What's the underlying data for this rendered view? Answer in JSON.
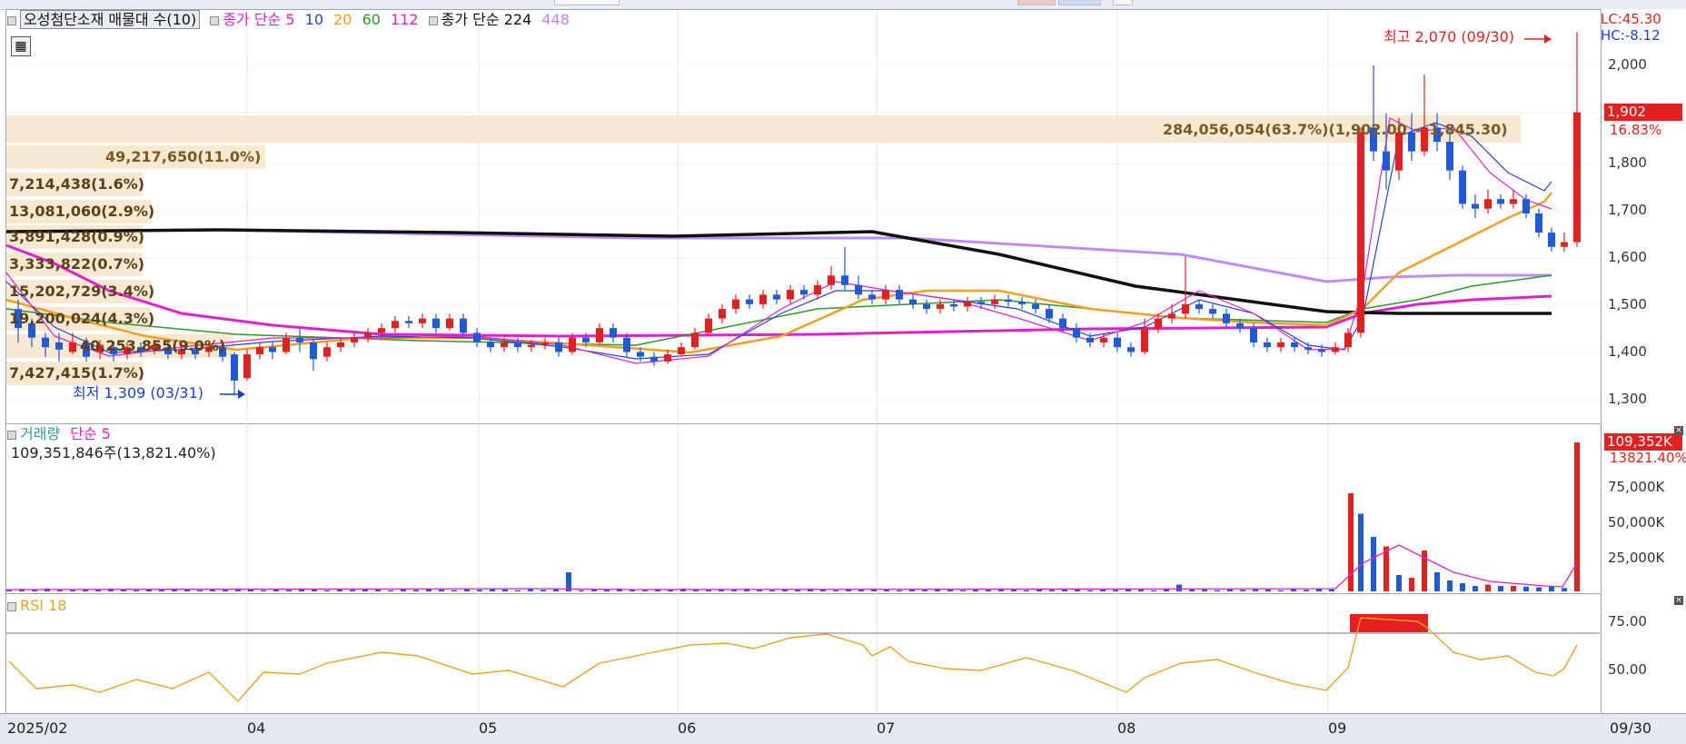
{
  "header": {
    "indicator_title": "오성첨단소재 매물대 수(10)",
    "ma_label": "종가 단순",
    "ma_periods": [
      "5",
      "10",
      "20",
      "60",
      "112"
    ],
    "ma_colors": [
      "#e020d0",
      "#2040e0",
      "#f0a020",
      "#2a9a2a",
      "#e020d0"
    ],
    "ma2_label": "종가 단순 224",
    "ma2_extra": "448"
  },
  "price_axis": {
    "ticks": [
      "2,000",
      "1,900",
      "1,800",
      "1,700",
      "1,600",
      "1,500",
      "1,400",
      "1,300"
    ],
    "lc": "LC:45.30",
    "hc": "HC:-8.12",
    "current": "1,902",
    "change_pct": "16.83%"
  },
  "annotations": {
    "high": "최고 2,070 (09/30)",
    "low": "최저 1,309 (03/31)"
  },
  "volume_profile": [
    "284,056,054(63.7%)(1,902.00 ~ 1,845.30)",
    "49,217,650(11.0%)",
    "7,214,438(1.6%)",
    "13,081,060(2.9%)",
    "3,891,428(0.9%)",
    "3,333,822(0.7%)",
    "15,202,729(3.4%)",
    "19,200,024(4.3%)",
    "40,253,855(9.0%)",
    "7,427,415(1.7%)"
  ],
  "volume_pane": {
    "title": "거래량",
    "ma_label": "단순 5",
    "value": "109,351,846주(13,821.40%)",
    "axis_ticks": [
      "75,000K",
      "50,000K",
      "25,000K"
    ],
    "current": "109,352K",
    "current_pct": "13821.40%"
  },
  "rsi_pane": {
    "title": "RSI 18",
    "axis_ticks": [
      "75.00",
      "50.00"
    ]
  },
  "date_axis": {
    "labels": [
      "2025/02",
      "04",
      "05",
      "06",
      "07",
      "08",
      "09"
    ],
    "last": "09/30"
  },
  "chart_data": {
    "type": "candlestick",
    "price_range": [
      1270,
      2080
    ],
    "high": 2070,
    "low": 1309,
    "last_close": 1902,
    "volume_range": [
      0,
      109352
    ],
    "rsi_range": [
      35,
      85
    ],
    "rsi_overbought": 70
  }
}
